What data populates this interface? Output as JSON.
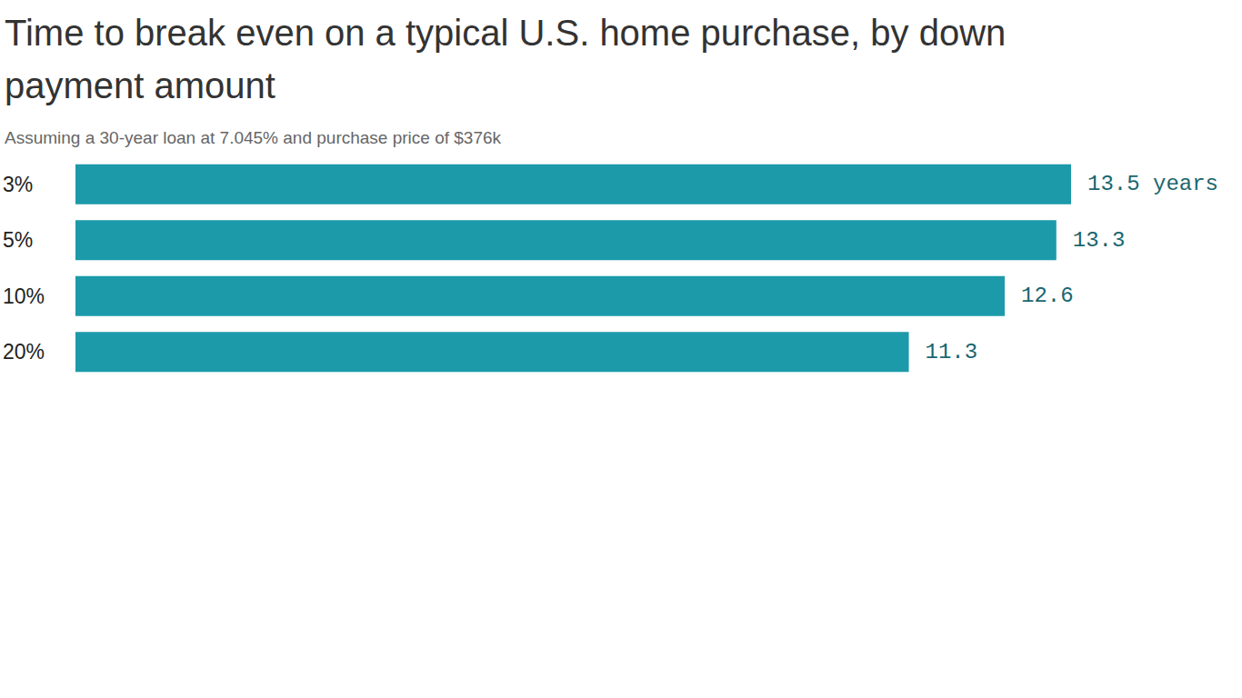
{
  "chart_data": {
    "type": "bar",
    "orientation": "horizontal",
    "title": "Time to break even on a typical U.S. home purchase, by down payment amount",
    "subtitle": "Assuming a 30-year loan at 7.045% and purchase price of $376k",
    "categories": [
      "3%",
      "5%",
      "10%",
      "20%"
    ],
    "values": [
      13.5,
      13.3,
      12.6,
      11.3
    ],
    "value_labels": [
      "13.5 years",
      "13.3",
      "12.6",
      "11.3"
    ],
    "color": "#1c9aa9",
    "xlim": [
      0,
      13.5
    ],
    "grid": false,
    "data_labels": true,
    "tick_labels": "y"
  }
}
